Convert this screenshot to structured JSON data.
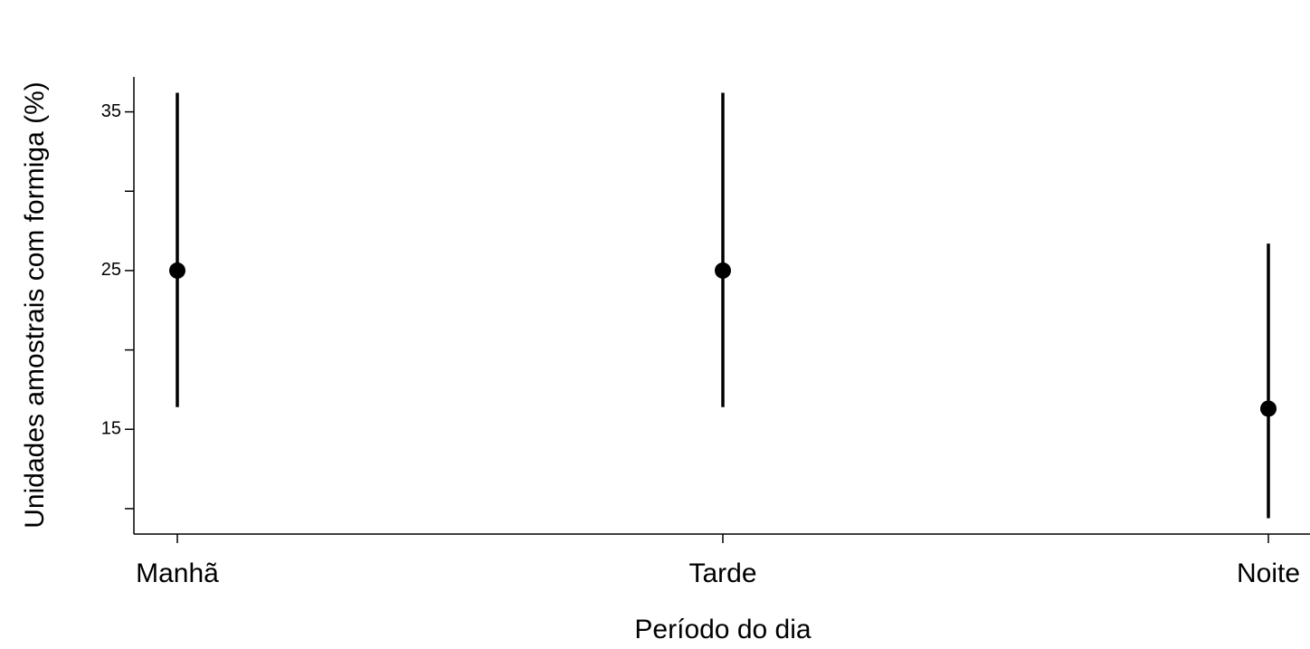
{
  "chart_data": {
    "type": "errorbar",
    "x_label": "Período do dia",
    "y_label": "Unidades amostrais com formiga (%)",
    "categories": [
      "Manhã",
      "Tarde",
      "Noite"
    ],
    "values": [
      25,
      25,
      16.3
    ],
    "lower": [
      16.4,
      16.4,
      9.4
    ],
    "upper": [
      36.2,
      36.2,
      26.7
    ],
    "color": "#000000",
    "ylim": [
      8.4,
      37.2
    ],
    "yticks": [
      15,
      25,
      35
    ],
    "minor_yticks": [
      10,
      20,
      30
    ]
  }
}
